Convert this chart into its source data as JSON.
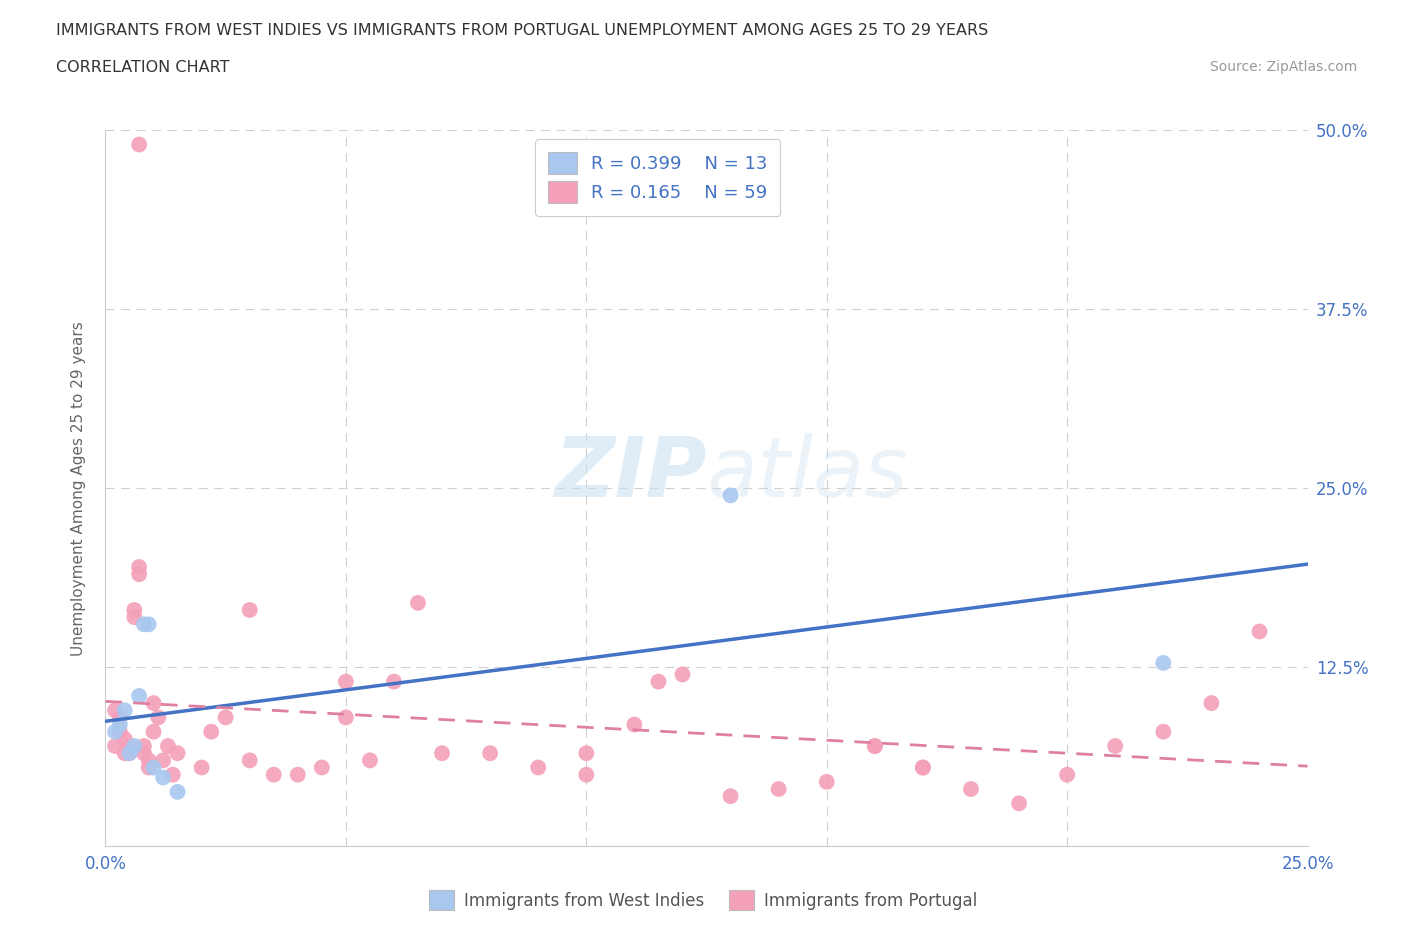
{
  "title_line1": "IMMIGRANTS FROM WEST INDIES VS IMMIGRANTS FROM PORTUGAL UNEMPLOYMENT AMONG AGES 25 TO 29 YEARS",
  "title_line2": "CORRELATION CHART",
  "source_text": "Source: ZipAtlas.com",
  "ylabel": "Unemployment Among Ages 25 to 29 years",
  "xlim": [
    0.0,
    0.25
  ],
  "ylim": [
    0.0,
    0.5
  ],
  "xticks": [
    0.0,
    0.05,
    0.1,
    0.15,
    0.2,
    0.25
  ],
  "xticklabels": [
    "0.0%",
    "",
    "",
    "",
    "",
    "25.0%"
  ],
  "yticks": [
    0.0,
    0.125,
    0.25,
    0.375,
    0.5
  ],
  "yticklabels_right": [
    "",
    "12.5%",
    "25.0%",
    "37.5%",
    "50.0%"
  ],
  "background_color": "#ffffff",
  "grid_color": "#d0d0d0",
  "watermark_text": "ZIPatlas",
  "watermark_color": "#ddeeff",
  "legend_R1": "0.399",
  "legend_N1": "13",
  "legend_R2": "0.165",
  "legend_N2": "59",
  "color_west_indies": "#a8c8f0",
  "color_portugal": "#f4a0b8",
  "line_color_west_indies": "#4472c4",
  "line_color_portugal": "#e080a0",
  "west_indies_x": [
    0.002,
    0.003,
    0.004,
    0.005,
    0.006,
    0.007,
    0.008,
    0.009,
    0.01,
    0.012,
    0.015,
    0.13,
    0.22
  ],
  "west_indies_y": [
    0.08,
    0.085,
    0.095,
    0.065,
    0.07,
    0.105,
    0.155,
    0.155,
    0.055,
    0.048,
    0.038,
    0.245,
    0.128
  ],
  "portugal_x": [
    0.007,
    0.002,
    0.002,
    0.003,
    0.003,
    0.004,
    0.004,
    0.005,
    0.005,
    0.006,
    0.006,
    0.007,
    0.007,
    0.008,
    0.008,
    0.009,
    0.009,
    0.01,
    0.01,
    0.011,
    0.012,
    0.013,
    0.014,
    0.015,
    0.02,
    0.022,
    0.025,
    0.03,
    0.03,
    0.035,
    0.04,
    0.045,
    0.05,
    0.055,
    0.06,
    0.065,
    0.07,
    0.08,
    0.09,
    0.1,
    0.1,
    0.11,
    0.115,
    0.13,
    0.14,
    0.15,
    0.16,
    0.17,
    0.18,
    0.19,
    0.2,
    0.21,
    0.22,
    0.23,
    0.24,
    0.05,
    0.12,
    0.16,
    0.17
  ],
  "portugal_y": [
    0.49,
    0.07,
    0.095,
    0.08,
    0.09,
    0.065,
    0.075,
    0.07,
    0.065,
    0.16,
    0.165,
    0.19,
    0.195,
    0.065,
    0.07,
    0.055,
    0.06,
    0.08,
    0.1,
    0.09,
    0.06,
    0.07,
    0.05,
    0.065,
    0.055,
    0.08,
    0.09,
    0.165,
    0.06,
    0.05,
    0.05,
    0.055,
    0.09,
    0.06,
    0.115,
    0.17,
    0.065,
    0.065,
    0.055,
    0.05,
    0.065,
    0.085,
    0.115,
    0.035,
    0.04,
    0.045,
    0.07,
    0.055,
    0.04,
    0.03,
    0.05,
    0.07,
    0.08,
    0.1,
    0.15,
    0.115,
    0.12,
    0.07,
    0.055
  ]
}
